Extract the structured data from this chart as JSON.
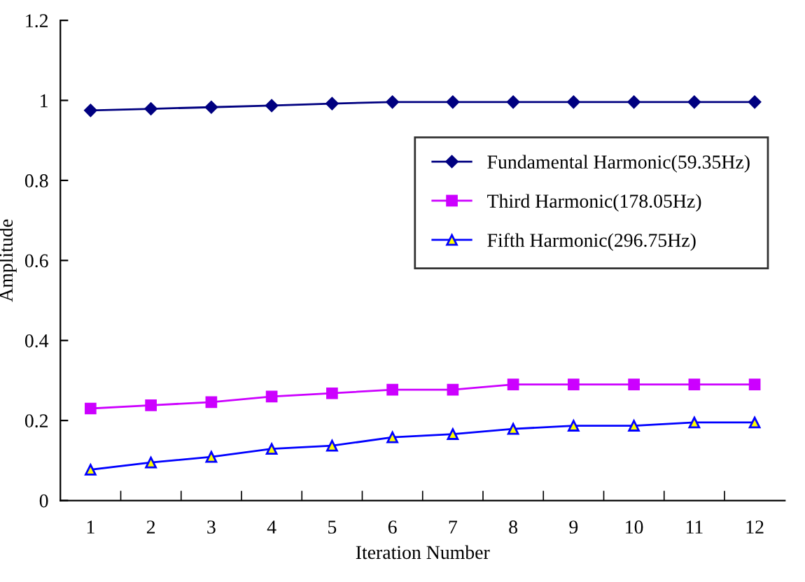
{
  "chart_data": {
    "type": "line",
    "xlabel": "Iteration Number",
    "ylabel": "Amplitude",
    "categories": [
      "1",
      "2",
      "3",
      "4",
      "5",
      "6",
      "7",
      "8",
      "9",
      "10",
      "11",
      "12"
    ],
    "series": [
      {
        "name": "Fundamental Harmonic(59.35Hz)",
        "color": "#000080",
        "marker": "diamond",
        "values": [
          0.975,
          0.979,
          0.983,
          0.987,
          0.992,
          0.996,
          0.996,
          0.996,
          0.996,
          0.996,
          0.996,
          0.996
        ]
      },
      {
        "name": "Third Harmonic(178.05Hz)",
        "color": "#cc00ff",
        "marker": "square",
        "values": [
          0.23,
          0.238,
          0.246,
          0.26,
          0.268,
          0.277,
          0.277,
          0.29,
          0.29,
          0.29,
          0.29,
          0.29
        ]
      },
      {
        "name": "Fifth Harmonic(296.75Hz)",
        "color": "#0000ff",
        "marker": "triangle",
        "values": [
          0.077,
          0.095,
          0.109,
          0.129,
          0.137,
          0.158,
          0.166,
          0.179,
          0.187,
          0.187,
          0.195,
          0.195
        ]
      }
    ],
    "ylim": [
      0,
      1.2
    ],
    "yticks": [
      0,
      0.2,
      0.4,
      0.6,
      0.8,
      1,
      1.2
    ],
    "grid": false,
    "legend": "right",
    "line_style": "solid"
  }
}
